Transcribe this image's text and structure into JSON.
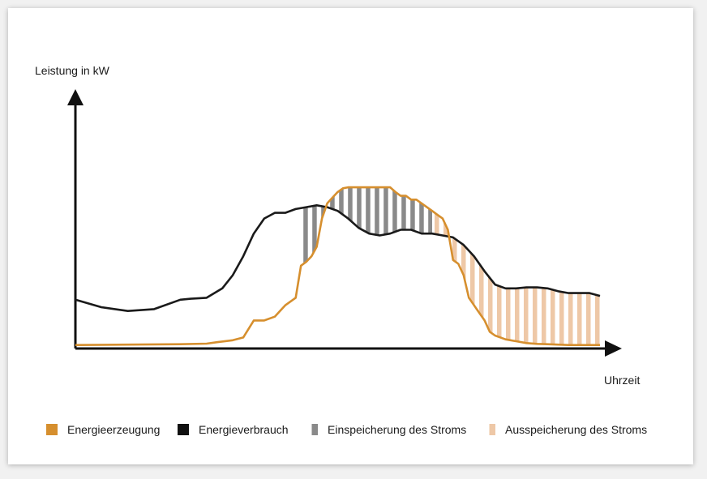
{
  "chart_data": {
    "type": "area",
    "title": "",
    "xlabel": "Uhrzeit",
    "ylabel": "Leistung in kW",
    "xlim": [
      0,
      100
    ],
    "ylim": [
      0,
      100
    ],
    "grid": false,
    "legend_position": "bottom",
    "series": [
      {
        "name": "Energieerzeugung",
        "color": "#d68f2e",
        "x": [
          0,
          10,
          20,
          25,
          27,
          30,
          32,
          34,
          36,
          38,
          40,
          42,
          43,
          44,
          45,
          46,
          47,
          48,
          49,
          50,
          51,
          52,
          53,
          54,
          55,
          56,
          57,
          58,
          59,
          60,
          61,
          62,
          63,
          64,
          65,
          66,
          67,
          68,
          69,
          70,
          71,
          72,
          73,
          74,
          75,
          76,
          77,
          78,
          79,
          80,
          82,
          84,
          86,
          88,
          90,
          92,
          94,
          96,
          98,
          100
        ],
        "y": [
          1,
          1.2,
          1.4,
          1.7,
          2.5,
          3.5,
          5,
          14,
          14,
          16,
          22,
          26,
          43,
          45,
          48,
          53,
          68,
          76,
          79,
          82,
          84,
          84.5,
          84.5,
          84.5,
          84.5,
          84.5,
          84.5,
          84.5,
          84.5,
          84.5,
          82,
          80,
          80,
          78,
          78,
          76,
          74,
          72,
          70,
          68,
          62,
          46,
          44,
          38,
          26,
          22,
          18,
          14,
          8,
          6,
          4,
          3,
          2,
          1.6,
          1.4,
          1.2,
          1,
          1,
          1,
          1
        ]
      },
      {
        "name": "Energieverbrauch",
        "color": "#1a1a1a",
        "x": [
          0,
          5,
          10,
          15,
          20,
          22,
          25,
          28,
          30,
          32,
          34,
          36,
          38,
          40,
          42,
          44,
          46,
          48,
          50,
          52,
          54,
          56,
          58,
          60,
          62,
          64,
          66,
          68,
          70,
          72,
          74,
          76,
          78,
          80,
          82,
          84,
          86,
          88,
          90,
          92,
          94,
          96,
          98,
          100
        ],
        "y": [
          25,
          21,
          19,
          20,
          25,
          25.5,
          26,
          31,
          38,
          48,
          60,
          68,
          71,
          71,
          73,
          74,
          75,
          74,
          72,
          68,
          63,
          60,
          59,
          60,
          62,
          62,
          60,
          60,
          59,
          58,
          54,
          48,
          40,
          33,
          31,
          31,
          31.5,
          31.5,
          31,
          29.5,
          28.5,
          28.5,
          28.5,
          27
        ]
      }
    ],
    "shaded_regions": [
      {
        "name": "Einspeicherung des Stroms",
        "x_range": [
          43,
          68
        ],
        "color": "#8a8a8a"
      },
      {
        "name": "Ausspeicherung des Stroms",
        "x_range": [
          68,
          100
        ],
        "color": "#eec8a7"
      }
    ]
  },
  "legend": {
    "items": [
      {
        "label": "Energieerzeugung",
        "color": "#d68f2e"
      },
      {
        "label": "Energieverbrauch",
        "color": "#111111"
      },
      {
        "label": "Einspeicherung des Stroms",
        "color": "#8a8a8a"
      },
      {
        "label": "Ausspeicherung des Stroms",
        "color": "#eec8a7"
      }
    ]
  }
}
